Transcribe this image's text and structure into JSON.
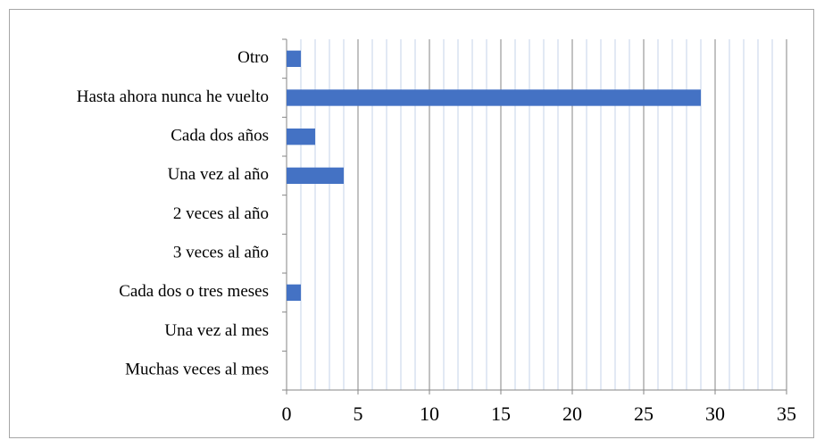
{
  "chart_data": {
    "type": "hbar",
    "categories": [
      "Otro",
      "Hasta ahora nunca he vuelto",
      "Cada dos años",
      "Una vez al año",
      "2 veces al año",
      "3 veces al año",
      "Cada dos o tres meses",
      "Una vez al mes",
      "Muchas veces al mes"
    ],
    "values": [
      1,
      29,
      2,
      4,
      0,
      0,
      1,
      0,
      0
    ],
    "color": "#4472c4",
    "xlim": [
      0,
      35
    ],
    "xticks": [
      0,
      5,
      10,
      15,
      20,
      25,
      30,
      35
    ],
    "grid": true,
    "minor_grid": true
  }
}
